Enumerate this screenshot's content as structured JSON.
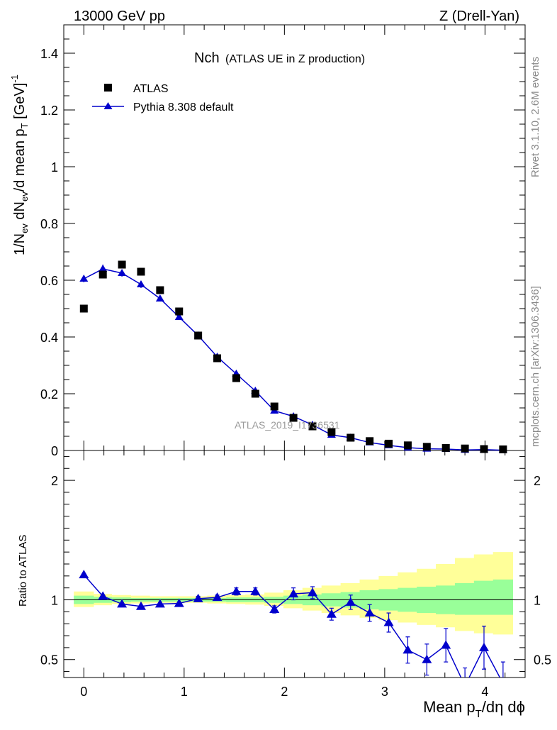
{
  "header": {
    "energy_label": "13000 GeV pp",
    "process_label": "Z (Drell-Yan)"
  },
  "side_labels": {
    "rivet": "Rivet 3.1.10,  2.6M events",
    "mcplots": "mcplots.cern.ch [arXiv:1306.3436]"
  },
  "watermark": "ATLAS_2019_I1736531",
  "chart_data": [
    {
      "type": "scatter",
      "title": "Nch",
      "subtitle": "(ATLAS UE in Z production)",
      "ylabel": "1/N_ev dN_ev/d mean p_T [GeV]^-1",
      "ylim": [
        0,
        1.5
      ],
      "xlim": [
        -0.2,
        4.4
      ],
      "yticks": [
        0,
        0.2,
        0.4,
        0.6,
        0.8,
        1,
        1.2,
        1.4
      ],
      "legend_position": "top-left",
      "series": [
        {
          "name": "ATLAS",
          "marker": "square",
          "color": "#000000",
          "x": [
            0.0,
            0.19,
            0.38,
            0.57,
            0.76,
            0.95,
            1.14,
            1.33,
            1.52,
            1.71,
            1.9,
            2.09,
            2.28,
            2.47,
            2.66,
            2.85,
            3.04,
            3.23,
            3.42,
            3.61,
            3.8,
            3.99,
            4.18
          ],
          "y": [
            0.5,
            0.62,
            0.655,
            0.63,
            0.565,
            0.49,
            0.405,
            0.325,
            0.255,
            0.2,
            0.155,
            0.115,
            0.085,
            0.065,
            0.045,
            0.033,
            0.024,
            0.018,
            0.013,
            0.009,
            0.007,
            0.005,
            0.004
          ]
        },
        {
          "name": "Pythia 8.308 default",
          "marker": "triangle",
          "color": "#0000cc",
          "x": [
            0.0,
            0.19,
            0.38,
            0.57,
            0.76,
            0.95,
            1.14,
            1.33,
            1.52,
            1.71,
            1.9,
            2.09,
            2.28,
            2.47,
            2.66,
            2.85,
            3.04,
            3.23,
            3.42,
            3.61,
            3.8,
            3.99,
            4.18
          ],
          "y": [
            0.605,
            0.64,
            0.625,
            0.585,
            0.535,
            0.47,
            0.405,
            0.33,
            0.27,
            0.21,
            0.14,
            0.12,
            0.09,
            0.055,
            0.045,
            0.028,
            0.018,
            0.01,
            0.006,
            0.005,
            0.002,
            0.003,
            0.001
          ],
          "yerr": [
            0.012,
            0.015,
            0.012,
            0.012,
            0.01,
            0.01,
            0.008,
            0.008,
            0.008,
            0.006,
            0.004,
            0.004,
            0.003,
            0.003,
            0.002,
            0.002,
            0.002,
            0.002,
            0.002,
            0.002,
            0.001,
            0.001,
            0.001
          ]
        }
      ]
    },
    {
      "type": "line",
      "ylabel": "Ratio to ATLAS",
      "xlabel": "Mean p_T/dη dϕ",
      "ylim": [
        0.35,
        2.25
      ],
      "xlim": [
        -0.2,
        4.4
      ],
      "yticks": [
        0.5,
        1,
        2
      ],
      "xticks": [
        0,
        1,
        2,
        3,
        4
      ],
      "reference_line": 1,
      "bands": {
        "x_edges": [
          -0.1,
          0.1,
          0.28,
          0.47,
          0.66,
          0.85,
          1.04,
          1.23,
          1.42,
          1.61,
          1.8,
          1.99,
          2.18,
          2.37,
          2.56,
          2.75,
          2.94,
          3.13,
          3.32,
          3.51,
          3.7,
          3.89,
          4.08,
          4.28
        ],
        "yellow_lo": [
          0.94,
          0.955,
          0.965,
          0.97,
          0.975,
          0.975,
          0.975,
          0.97,
          0.965,
          0.96,
          0.95,
          0.93,
          0.91,
          0.89,
          0.87,
          0.85,
          0.83,
          0.81,
          0.79,
          0.77,
          0.74,
          0.72,
          0.71
        ],
        "yellow_hi": [
          1.07,
          1.05,
          1.04,
          1.035,
          1.03,
          1.03,
          1.03,
          1.035,
          1.04,
          1.045,
          1.06,
          1.08,
          1.1,
          1.12,
          1.14,
          1.17,
          1.2,
          1.23,
          1.26,
          1.3,
          1.35,
          1.38,
          1.4
        ],
        "green_lo": [
          0.965,
          0.975,
          0.98,
          0.985,
          0.985,
          0.985,
          0.985,
          0.985,
          0.98,
          0.98,
          0.975,
          0.965,
          0.955,
          0.945,
          0.935,
          0.92,
          0.91,
          0.9,
          0.89,
          0.88,
          0.875,
          0.875,
          0.875
        ],
        "green_hi": [
          1.035,
          1.025,
          1.02,
          1.015,
          1.015,
          1.015,
          1.015,
          1.015,
          1.02,
          1.02,
          1.025,
          1.035,
          1.045,
          1.055,
          1.065,
          1.08,
          1.09,
          1.1,
          1.11,
          1.12,
          1.14,
          1.16,
          1.17
        ]
      },
      "series": [
        {
          "name": "Pythia 8.308 default",
          "color": "#0000cc",
          "x": [
            0.0,
            0.19,
            0.38,
            0.57,
            0.76,
            0.95,
            1.14,
            1.33,
            1.52,
            1.71,
            1.9,
            2.09,
            2.28,
            2.47,
            2.66,
            2.85,
            3.04,
            3.23,
            3.42,
            3.61,
            3.8,
            3.99,
            4.18
          ],
          "y": [
            1.21,
            1.03,
            0.965,
            0.945,
            0.965,
            0.97,
            1.01,
            1.02,
            1.07,
            1.07,
            0.92,
            1.05,
            1.06,
            0.88,
            0.98,
            0.89,
            0.81,
            0.58,
            0.5,
            0.62,
            0.28,
            0.6,
            0.3
          ],
          "yerr": [
            0.01,
            0.01,
            0.01,
            0.01,
            0.01,
            0.01,
            0.02,
            0.02,
            0.03,
            0.03,
            0.03,
            0.05,
            0.05,
            0.05,
            0.06,
            0.07,
            0.08,
            0.11,
            0.13,
            0.14,
            0.15,
            0.18,
            0.18
          ]
        }
      ]
    }
  ]
}
